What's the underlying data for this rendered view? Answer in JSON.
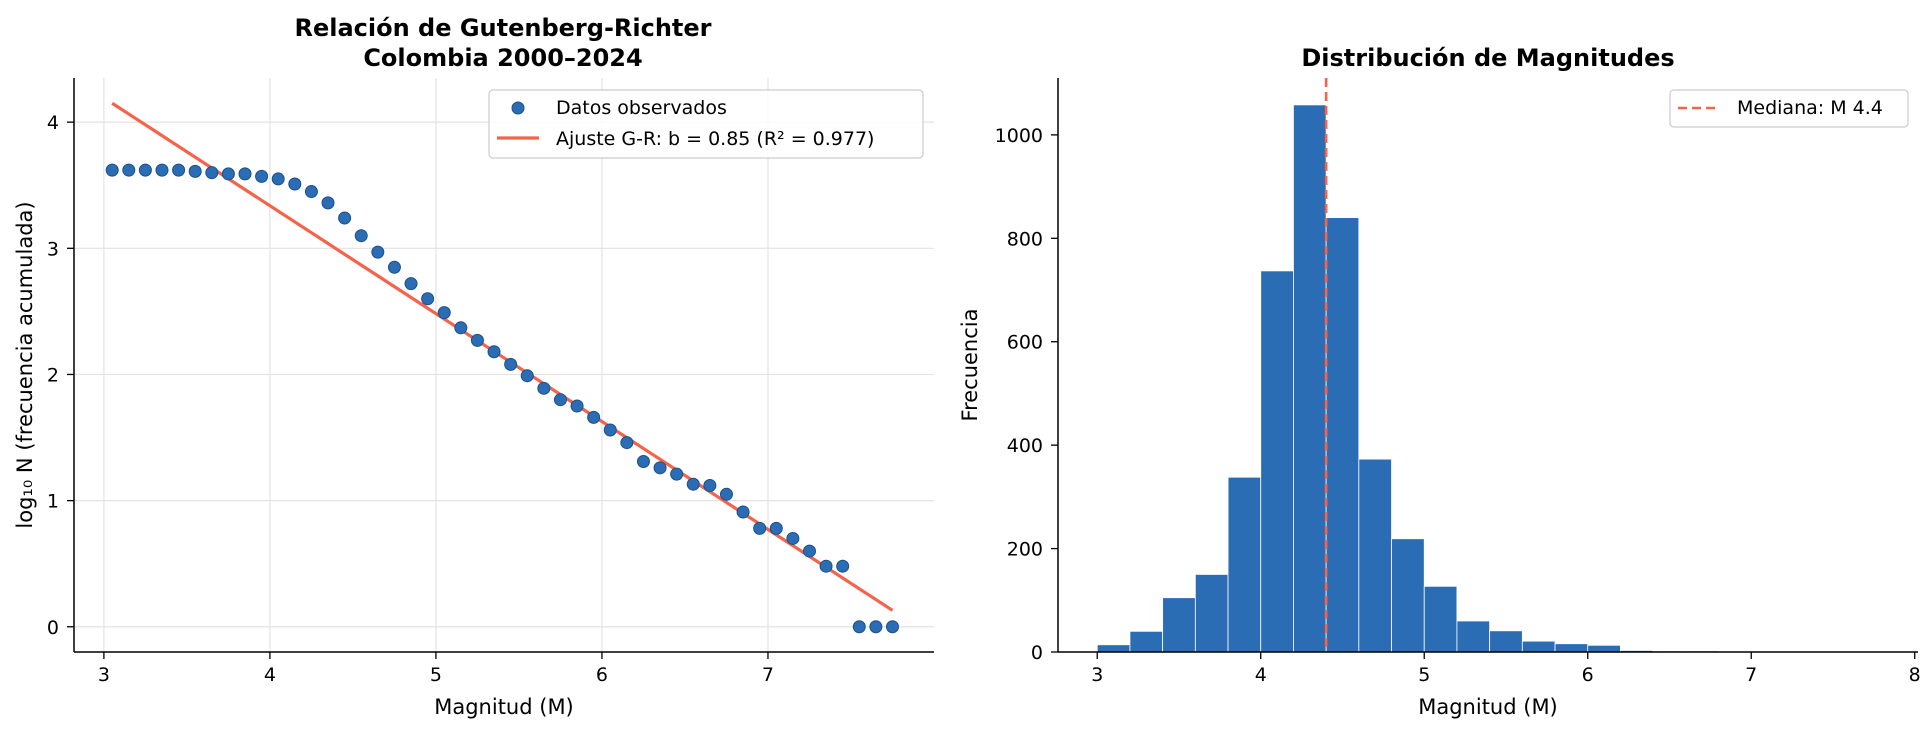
{
  "chart_data": [
    {
      "type": "scatter",
      "title": "Relación de Gutenberg-Richter\nColombia 2000–2024",
      "xlabel": "Magnitud (M)",
      "ylabel": "log₁₀ N (frecuencia acumulada)",
      "xlim": [
        2.82,
        8.0
      ],
      "ylim": [
        -0.2,
        4.35
      ],
      "xticks": [
        3,
        4,
        5,
        6,
        7
      ],
      "yticks": [
        0,
        1,
        2,
        3,
        4
      ],
      "grid": true,
      "legend_position": "upper-right",
      "series": [
        {
          "name": "Datos observados",
          "kind": "scatter",
          "color": "#2a6db5",
          "x": [
            3.05,
            3.15,
            3.25,
            3.35,
            3.45,
            3.55,
            3.65,
            3.75,
            3.85,
            3.95,
            4.05,
            4.15,
            4.25,
            4.35,
            4.45,
            4.55,
            4.65,
            4.75,
            4.85,
            4.95,
            5.05,
            5.15,
            5.25,
            5.35,
            5.45,
            5.55,
            5.65,
            5.75,
            5.85,
            5.95,
            6.05,
            6.15,
            6.25,
            6.35,
            6.45,
            6.55,
            6.65,
            6.75,
            6.85,
            6.95,
            7.05,
            7.15,
            7.25,
            7.35,
            7.45,
            7.55,
            7.65,
            7.75
          ],
          "y": [
            3.62,
            3.62,
            3.62,
            3.62,
            3.62,
            3.61,
            3.6,
            3.59,
            3.59,
            3.57,
            3.55,
            3.51,
            3.45,
            3.36,
            3.24,
            3.1,
            2.97,
            2.85,
            2.72,
            2.6,
            2.49,
            2.37,
            2.27,
            2.18,
            2.08,
            1.99,
            1.89,
            1.8,
            1.75,
            1.66,
            1.56,
            1.46,
            1.31,
            1.26,
            1.21,
            1.13,
            1.12,
            1.05,
            0.91,
            0.78,
            0.78,
            0.7,
            0.6,
            0.48,
            0.48,
            0.0,
            0.0,
            0.0
          ]
        },
        {
          "name": "Ajuste G-R: b = 0.85  (R² = 0.977)",
          "kind": "line",
          "color": "#f4634a",
          "x": [
            3.05,
            7.75
          ],
          "y": [
            4.15,
            0.13
          ]
        }
      ]
    },
    {
      "type": "bar",
      "title": "Distribución de Magnitudes",
      "xlabel": "Magnitud (M)",
      "ylabel": "Frecuencia",
      "xlim": [
        2.76,
        8.02
      ],
      "ylim": [
        0,
        1110
      ],
      "xticks": [
        3,
        4,
        5,
        6,
        7,
        8
      ],
      "yticks": [
        0,
        200,
        400,
        600,
        800,
        1000
      ],
      "grid": false,
      "legend_position": "upper-right",
      "bar_color": "#2a6db5",
      "bin_edges": [
        3.0,
        3.2,
        3.4,
        3.6,
        3.8,
        4.0,
        4.2,
        4.4,
        4.6,
        4.8,
        5.0,
        5.2,
        5.4,
        5.6,
        5.8,
        6.0,
        6.2,
        6.4,
        6.6,
        6.8,
        7.0,
        7.2,
        7.4,
        7.6,
        7.8
      ],
      "values": [
        14,
        40,
        105,
        150,
        338,
        737,
        1058,
        840,
        373,
        219,
        127,
        60,
        41,
        21,
        16,
        13,
        3,
        2,
        2,
        1,
        1,
        1,
        1,
        1
      ],
      "median": 4.4,
      "median_color": "#f4634a",
      "median_label": "Mediana: M 4.4"
    }
  ]
}
